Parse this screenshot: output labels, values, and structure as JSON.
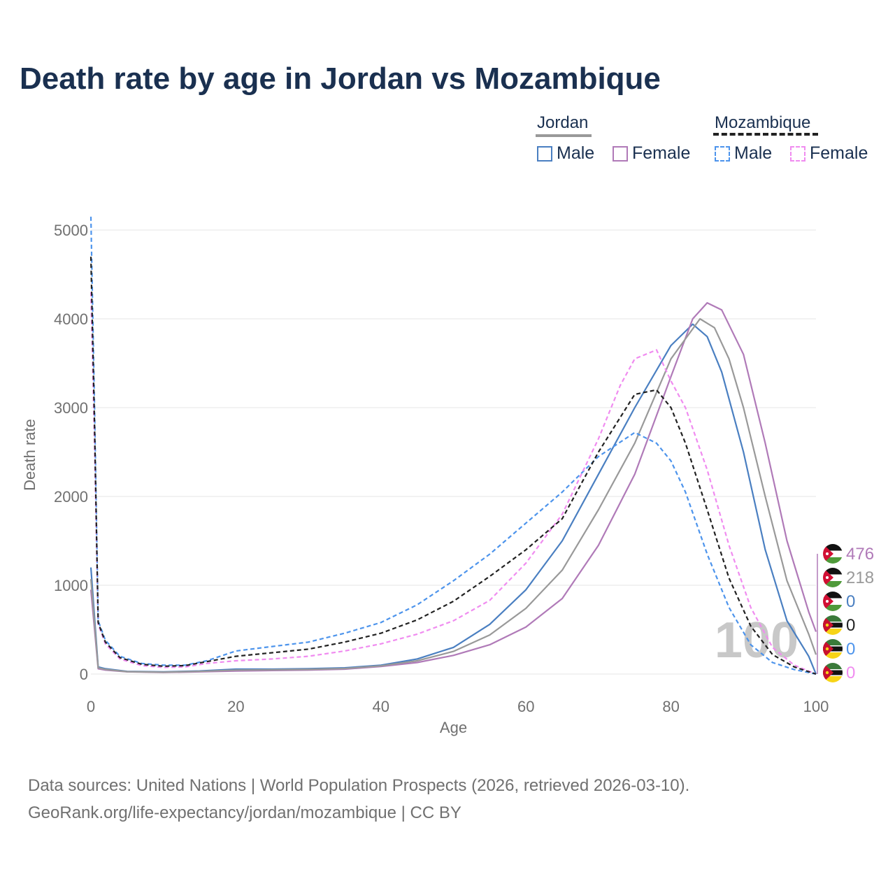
{
  "title": "Death rate by age in Jordan vs Mozambique",
  "legend": {
    "group1": "Jordan",
    "group2": "Mozambique",
    "male": "Male",
    "female": "Female"
  },
  "colors": {
    "title": "#1a3050",
    "jordan_male": "#4a7fc1",
    "jordan_female": "#b07ab8",
    "jordan_total": "#999999",
    "mozambique_male": "#4d94ec",
    "mozambique_female": "#f08cf0",
    "mozambique_total": "#222222"
  },
  "watermark_year": "100",
  "end_labels": [
    {
      "flag": "jordan-flag-icon",
      "value": "476",
      "series": "Jordan Female"
    },
    {
      "flag": "jordan-flag-icon",
      "value": "218",
      "series": "Jordan Total"
    },
    {
      "flag": "jordan-flag-icon",
      "value": "0",
      "series": "Jordan Male"
    },
    {
      "flag": "mozambique-flag-icon",
      "value": "0",
      "series": "Mozambique Total"
    },
    {
      "flag": "mozambique-flag-icon",
      "value": "0",
      "series": "Mozambique Male"
    },
    {
      "flag": "mozambique-flag-icon",
      "value": "0",
      "series": "Mozambique Female"
    }
  ],
  "footer": {
    "line1": "Data sources: United Nations | World Population Prospects (2026, retrieved 2026-03-10).",
    "line2": "GeoRank.org/life-expectancy/jordan/mozambique | CC BY"
  },
  "chart_data": {
    "type": "line",
    "title": "Death rate by age in Jordan vs Mozambique",
    "xlabel": "Age",
    "ylabel": "Death rate",
    "xlim": [
      0,
      100
    ],
    "ylim": [
      0,
      5000
    ],
    "xticks": [
      0,
      20,
      40,
      60,
      80,
      100
    ],
    "yticks": [
      0,
      1000,
      2000,
      3000,
      4000,
      5000
    ],
    "series": [
      {
        "name": "Jordan Male",
        "dash": false,
        "color": "#4a7fc1",
        "points": [
          [
            0,
            1200
          ],
          [
            1,
            80
          ],
          [
            2,
            60
          ],
          [
            5,
            30
          ],
          [
            10,
            25
          ],
          [
            15,
            35
          ],
          [
            20,
            55
          ],
          [
            25,
            55
          ],
          [
            30,
            60
          ],
          [
            35,
            70
          ],
          [
            40,
            100
          ],
          [
            45,
            170
          ],
          [
            50,
            300
          ],
          [
            55,
            560
          ],
          [
            60,
            950
          ],
          [
            65,
            1500
          ],
          [
            70,
            2250
          ],
          [
            75,
            3000
          ],
          [
            80,
            3700
          ],
          [
            83,
            3940
          ],
          [
            85,
            3800
          ],
          [
            87,
            3400
          ],
          [
            90,
            2500
          ],
          [
            93,
            1400
          ],
          [
            96,
            600
          ],
          [
            99,
            200
          ],
          [
            100,
            0
          ]
        ]
      },
      {
        "name": "Jordan Female",
        "dash": false,
        "color": "#b07ab8",
        "points": [
          [
            0,
            950
          ],
          [
            1,
            60
          ],
          [
            2,
            45
          ],
          [
            5,
            25
          ],
          [
            10,
            18
          ],
          [
            15,
            25
          ],
          [
            20,
            35
          ],
          [
            25,
            40
          ],
          [
            30,
            45
          ],
          [
            35,
            55
          ],
          [
            40,
            85
          ],
          [
            45,
            130
          ],
          [
            50,
            210
          ],
          [
            55,
            330
          ],
          [
            60,
            530
          ],
          [
            65,
            850
          ],
          [
            70,
            1450
          ],
          [
            75,
            2250
          ],
          [
            80,
            3350
          ],
          [
            83,
            4000
          ],
          [
            85,
            4180
          ],
          [
            87,
            4100
          ],
          [
            90,
            3600
          ],
          [
            93,
            2600
          ],
          [
            96,
            1500
          ],
          [
            99,
            700
          ],
          [
            100,
            476
          ]
        ]
      },
      {
        "name": "Jordan Total",
        "dash": false,
        "color": "#999999",
        "points": [
          [
            0,
            1070
          ],
          [
            1,
            70
          ],
          [
            2,
            52
          ],
          [
            5,
            27
          ],
          [
            10,
            21
          ],
          [
            15,
            30
          ],
          [
            20,
            45
          ],
          [
            25,
            48
          ],
          [
            30,
            52
          ],
          [
            35,
            62
          ],
          [
            40,
            92
          ],
          [
            45,
            150
          ],
          [
            50,
            255
          ],
          [
            55,
            440
          ],
          [
            60,
            740
          ],
          [
            65,
            1170
          ],
          [
            70,
            1850
          ],
          [
            75,
            2600
          ],
          [
            80,
            3550
          ],
          [
            84,
            4000
          ],
          [
            86,
            3900
          ],
          [
            88,
            3550
          ],
          [
            90,
            3000
          ],
          [
            93,
            2000
          ],
          [
            96,
            1050
          ],
          [
            99,
            450
          ],
          [
            100,
            218
          ]
        ]
      },
      {
        "name": "Mozambique Male",
        "dash": true,
        "color": "#4d94ec",
        "points": [
          [
            0,
            5150
          ],
          [
            0.5,
            3000
          ],
          [
            1,
            600
          ],
          [
            2,
            380
          ],
          [
            4,
            200
          ],
          [
            7,
            120
          ],
          [
            10,
            100
          ],
          [
            13,
            100
          ],
          [
            16,
            150
          ],
          [
            20,
            260
          ],
          [
            25,
            310
          ],
          [
            30,
            360
          ],
          [
            35,
            460
          ],
          [
            40,
            580
          ],
          [
            45,
            780
          ],
          [
            50,
            1050
          ],
          [
            55,
            1350
          ],
          [
            60,
            1700
          ],
          [
            65,
            2050
          ],
          [
            70,
            2450
          ],
          [
            75,
            2720
          ],
          [
            78,
            2600
          ],
          [
            80,
            2400
          ],
          [
            82,
            2050
          ],
          [
            85,
            1350
          ],
          [
            88,
            750
          ],
          [
            91,
            330
          ],
          [
            94,
            130
          ],
          [
            97,
            50
          ],
          [
            100,
            0
          ]
        ]
      },
      {
        "name": "Mozambique Female",
        "dash": true,
        "color": "#f08cf0",
        "points": [
          [
            0,
            4300
          ],
          [
            0.5,
            2600
          ],
          [
            1,
            560
          ],
          [
            2,
            340
          ],
          [
            4,
            170
          ],
          [
            7,
            95
          ],
          [
            10,
            75
          ],
          [
            13,
            80
          ],
          [
            16,
            120
          ],
          [
            20,
            150
          ],
          [
            25,
            170
          ],
          [
            30,
            200
          ],
          [
            35,
            260
          ],
          [
            40,
            340
          ],
          [
            45,
            450
          ],
          [
            50,
            600
          ],
          [
            55,
            830
          ],
          [
            60,
            1250
          ],
          [
            65,
            1800
          ],
          [
            70,
            2650
          ],
          [
            73,
            3250
          ],
          [
            75,
            3550
          ],
          [
            78,
            3650
          ],
          [
            80,
            3300
          ],
          [
            82,
            3000
          ],
          [
            85,
            2300
          ],
          [
            88,
            1450
          ],
          [
            91,
            750
          ],
          [
            94,
            300
          ],
          [
            97,
            100
          ],
          [
            100,
            0
          ]
        ]
      },
      {
        "name": "Mozambique Total",
        "dash": true,
        "color": "#222222",
        "points": [
          [
            0,
            4700
          ],
          [
            0.5,
            2800
          ],
          [
            1,
            580
          ],
          [
            2,
            360
          ],
          [
            4,
            185
          ],
          [
            7,
            110
          ],
          [
            10,
            88
          ],
          [
            13,
            95
          ],
          [
            16,
            140
          ],
          [
            20,
            200
          ],
          [
            25,
            240
          ],
          [
            30,
            280
          ],
          [
            35,
            360
          ],
          [
            40,
            460
          ],
          [
            45,
            610
          ],
          [
            50,
            820
          ],
          [
            55,
            1100
          ],
          [
            60,
            1400
          ],
          [
            65,
            1750
          ],
          [
            70,
            2500
          ],
          [
            75,
            3150
          ],
          [
            78,
            3200
          ],
          [
            80,
            3000
          ],
          [
            82,
            2600
          ],
          [
            85,
            1850
          ],
          [
            88,
            1080
          ],
          [
            91,
            540
          ],
          [
            94,
            220
          ],
          [
            97,
            80
          ],
          [
            100,
            0
          ]
        ]
      }
    ]
  }
}
